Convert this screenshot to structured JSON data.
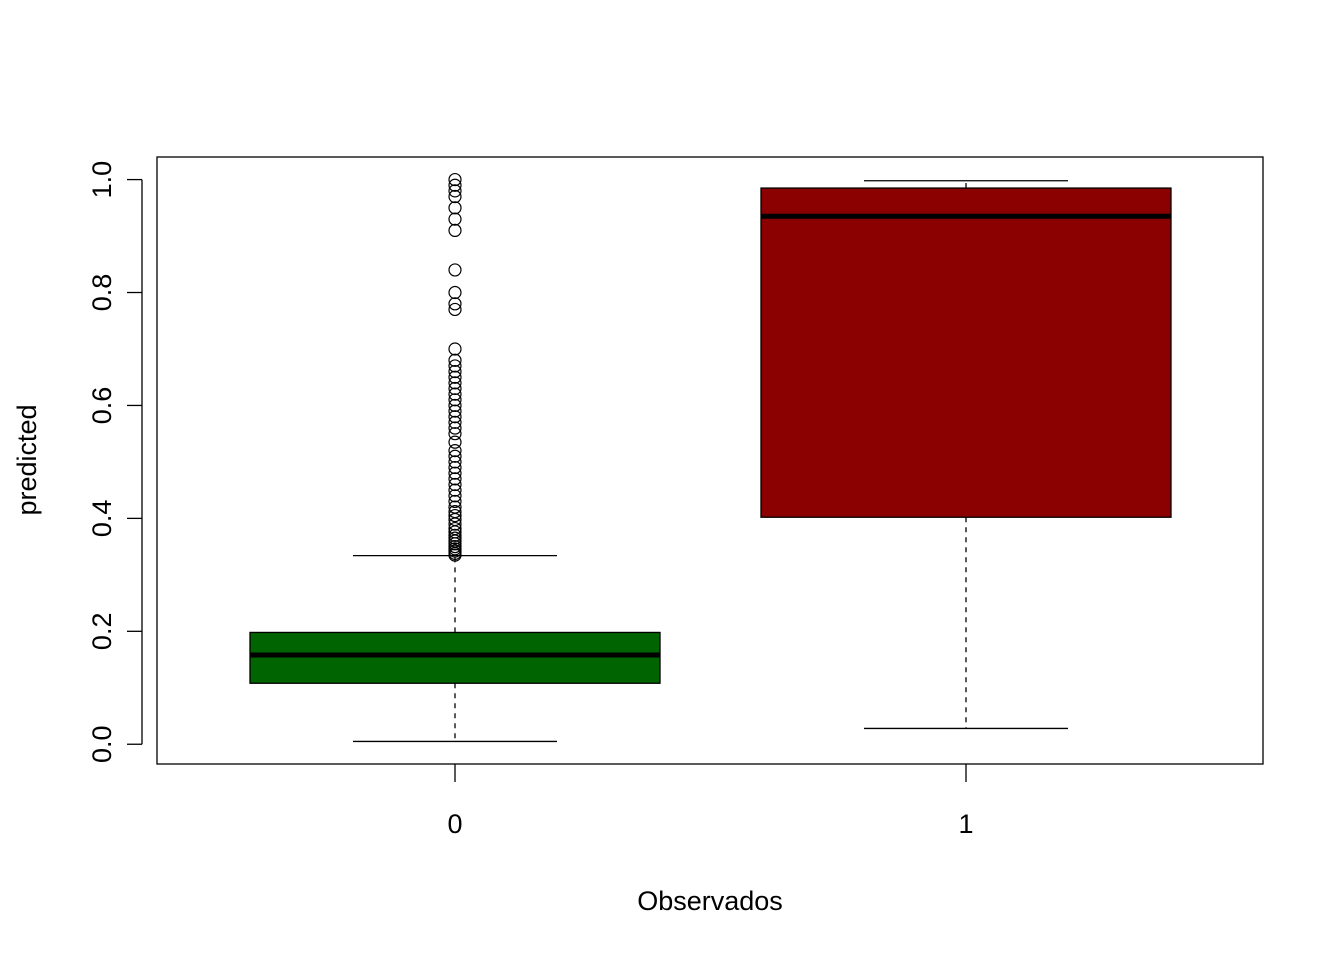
{
  "chart_data": {
    "type": "boxplot",
    "title": "",
    "xlabel": "Observados",
    "ylabel": "predicted",
    "categories": [
      "0",
      "1"
    ],
    "ylim": [
      -0.035,
      1.04
    ],
    "yticks": [
      0.0,
      0.2,
      0.4,
      0.6,
      0.8,
      1.0
    ],
    "ytick_labels": [
      "0.0",
      "0.2",
      "0.4",
      "0.6",
      "0.8",
      "1.0"
    ],
    "grid": false,
    "legend": "none",
    "boxes": [
      {
        "category": "0",
        "color": "#006400",
        "whisker_low": 0.005,
        "q1": 0.108,
        "median": 0.158,
        "q3": 0.198,
        "whisker_high": 0.334,
        "outliers": [
          0.335,
          0.338,
          0.342,
          0.346,
          0.35,
          0.355,
          0.36,
          0.365,
          0.37,
          0.376,
          0.382,
          0.39,
          0.398,
          0.405,
          0.412,
          0.42,
          0.43,
          0.44,
          0.45,
          0.46,
          0.47,
          0.48,
          0.49,
          0.5,
          0.51,
          0.52,
          0.535,
          0.55,
          0.56,
          0.57,
          0.58,
          0.59,
          0.6,
          0.61,
          0.62,
          0.63,
          0.64,
          0.65,
          0.66,
          0.67,
          0.68,
          0.7,
          0.77,
          0.78,
          0.8,
          0.84,
          0.91,
          0.93,
          0.95,
          0.97,
          0.98,
          0.99,
          1.0
        ]
      },
      {
        "category": "1",
        "color": "#8B0000",
        "whisker_low": 0.028,
        "q1": 0.402,
        "median": 0.935,
        "q3": 0.985,
        "whisker_high": 0.998,
        "outliers": []
      }
    ]
  }
}
